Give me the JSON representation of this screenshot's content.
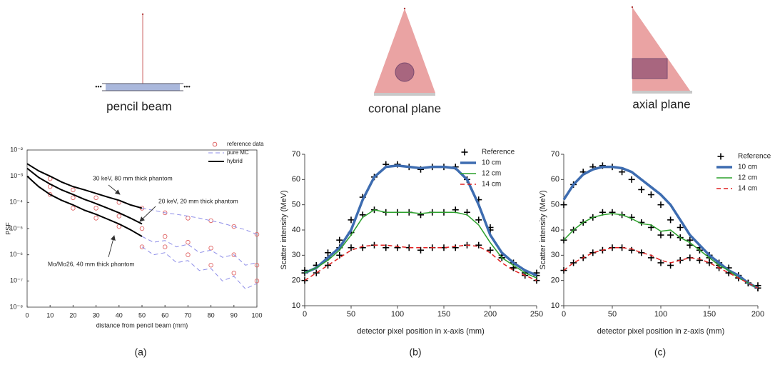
{
  "diagrams": [
    {
      "label": "pencil beam"
    },
    {
      "label": "coronal plane"
    },
    {
      "label": "axial plane"
    }
  ],
  "panel_labels": [
    "(a)",
    "(b)",
    "(c)"
  ],
  "chart_data": [
    {
      "type": "line",
      "ylabel": "PSF",
      "xlabel": "distance from pencil beam (mm)",
      "log_y": true,
      "box": true,
      "legend": "upper right",
      "xlim": [
        0,
        100
      ],
      "xticks": [
        0,
        10,
        20,
        30,
        40,
        50,
        60,
        70,
        80,
        90,
        100
      ],
      "ylim": [
        1e-08,
        0.01
      ],
      "yticks": [
        {
          "value": 1e-08,
          "label": "10⁻⁸"
        },
        {
          "value": 1e-07,
          "label": "10⁻⁷"
        },
        {
          "value": 1e-06,
          "label": "10⁻⁶"
        },
        {
          "value": 1e-05,
          "label": "10⁻⁵"
        },
        {
          "value": 0.0001,
          "label": "10⁻⁴"
        },
        {
          "value": 0.001,
          "label": "10⁻³"
        },
        {
          "value": 0.01,
          "label": "10⁻²"
        }
      ],
      "series": [
        {
          "name": "reference data",
          "type": "scatter",
          "marker": "circle",
          "color": "#e06666",
          "x": [
            10,
            20,
            30,
            40,
            50,
            60,
            70,
            80,
            90,
            100,
            10,
            20,
            30,
            40,
            50,
            60,
            70,
            80,
            90,
            100,
            10,
            20,
            30,
            40,
            50,
            60,
            70,
            80,
            90,
            100
          ],
          "values": [
            0.0008,
            0.0003,
            0.00015,
            0.0001,
            6e-05,
            4e-05,
            2.5e-05,
            2e-05,
            1.2e-05,
            6e-06,
            0.0004,
            0.00015,
            6e-05,
            3e-05,
            1e-05,
            5e-06,
            3e-06,
            1.8e-06,
            1e-06,
            4e-07,
            0.0002,
            6e-05,
            2.5e-05,
            1.2e-05,
            2e-06,
            2e-06,
            1e-06,
            4e-07,
            2e-07,
            1e-07
          ]
        },
        {
          "name": "pure MC",
          "color": "#8e8ee8",
          "dash": true,
          "linewidth": 1,
          "lines": [
            {
              "x": [
                50,
                55,
                60,
                65,
                70,
                75,
                80,
                85,
                90,
                95,
                100
              ],
              "values": [
                6e-05,
                5e-05,
                4e-05,
                3.5e-05,
                3e-05,
                2.5e-05,
                2e-05,
                1.6e-05,
                1.2e-05,
                9e-06,
                6e-06
              ]
            },
            {
              "x": [
                50,
                55,
                60,
                65,
                70,
                75,
                80,
                85,
                90,
                95,
                100
              ],
              "values": [
                5e-06,
                3e-06,
                3.5e-06,
                2e-06,
                2.5e-06,
                1.2e-06,
                1.5e-06,
                8e-07,
                1e-06,
                4e-07,
                5e-07
              ]
            },
            {
              "x": [
                50,
                55,
                60,
                65,
                70,
                75,
                80,
                85,
                90,
                95,
                100
              ],
              "values": [
                2e-06,
                1e-06,
                1.2e-06,
                5e-07,
                6e-07,
                2.5e-07,
                3e-07,
                1e-07,
                1.5e-07,
                5e-08,
                8e-08
              ]
            }
          ]
        },
        {
          "name": "hybrid",
          "color": "#000000",
          "linewidth": 2,
          "lines": [
            {
              "x": [
                0,
                5,
                10,
                15,
                20,
                25,
                30,
                35,
                40,
                45,
                50
              ],
              "values": [
                0.003,
                0.0016,
                0.001,
                0.0006,
                0.0004,
                0.0003,
                0.00022,
                0.00016,
                0.00012,
                8e-05,
                6e-05
              ]
            },
            {
              "x": [
                0,
                5,
                10,
                15,
                20,
                25,
                30,
                35,
                40,
                45,
                50
              ],
              "values": [
                0.002,
                0.0009,
                0.0005,
                0.0003,
                0.0002,
                0.00013,
                9e-05,
                6e-05,
                4e-05,
                2.5e-05,
                1.5e-05
              ]
            },
            {
              "x": [
                0,
                5,
                10,
                15,
                20,
                25,
                30,
                35,
                40,
                45,
                50
              ],
              "values": [
                0.001,
                0.0004,
                0.0002,
                0.00012,
                8e-05,
                5e-05,
                3.5e-05,
                2.3e-05,
                1.5e-05,
                9e-06,
                5e-06
              ]
            }
          ]
        }
      ],
      "annotations": [
        "30 keV, 80 mm thick phantom",
        "20 keV, 20 mm thick phantom",
        "Mo/Mo26, 40 mm thick phantom"
      ]
    },
    {
      "type": "line",
      "ylabel": "Scatter intensity (MeV)",
      "xlabel": "detector pixel position in x-axis (mm)",
      "legend": "upper right",
      "xlim": [
        0,
        250
      ],
      "xticks": [
        0,
        50,
        100,
        150,
        200,
        250
      ],
      "ylim": [
        10,
        70
      ],
      "yticks": [
        10,
        20,
        30,
        40,
        50,
        60,
        70
      ],
      "x": [
        0,
        12.5,
        25,
        37.5,
        50,
        62.5,
        75,
        87.5,
        100,
        112.5,
        125,
        137.5,
        150,
        162.5,
        175,
        187.5,
        200,
        212.5,
        225,
        237.5,
        250
      ],
      "series": [
        {
          "name": "Reference",
          "type": "scatter",
          "marker": "plus",
          "color": "#000000",
          "values": [
            [
              24,
              26,
              31,
              36,
              44,
              53,
              61,
              66,
              66,
              65,
              64,
              65,
              65,
              65,
              60,
              52,
              41,
              29,
              27,
              23,
              23
            ],
            [
              23,
              26,
              29,
              33,
              39,
              46,
              48,
              47,
              47,
              47,
              46,
              47,
              47,
              48,
              47,
              44,
              40,
              30,
              25,
              23,
              22
            ],
            [
              20,
              23,
              26,
              30,
              33,
              33,
              34,
              33,
              33,
              33,
              32,
              33,
              33,
              33,
              34,
              34,
              32,
              29,
              25,
              22,
              20
            ]
          ]
        },
        {
          "name": "10 cm",
          "color": "#3d6cb0",
          "linewidth": 3.5,
          "values": [
            23,
            25,
            29,
            33,
            40,
            52,
            61,
            65,
            65.5,
            65,
            64.5,
            65,
            65,
            64.5,
            60,
            50,
            38,
            31,
            27,
            24,
            22
          ]
        },
        {
          "name": "12 cm",
          "color": "#2ca02c",
          "linewidth": 1.5,
          "values": [
            23,
            25,
            28,
            32,
            38,
            45,
            48,
            47,
            47,
            47,
            46.5,
            47,
            47,
            47,
            46,
            42,
            35,
            29,
            26,
            23,
            21
          ]
        },
        {
          "name": "14 cm",
          "color": "#e02020",
          "linewidth": 1.5,
          "dash": true,
          "values": [
            20,
            23,
            26,
            29,
            32,
            33.5,
            34,
            34,
            33.5,
            33,
            33,
            33,
            33,
            33.5,
            34,
            33.5,
            31,
            27,
            24,
            22,
            20
          ]
        }
      ]
    },
    {
      "type": "line",
      "ylabel": "Scatter intensity (MeV)",
      "xlabel": "detector pixel position in z-axis (mm)",
      "legend": "upper right",
      "xlim": [
        0,
        200
      ],
      "xticks": [
        0,
        50,
        100,
        150,
        200
      ],
      "ylim": [
        10,
        70
      ],
      "yticks": [
        10,
        20,
        30,
        40,
        50,
        60,
        70
      ],
      "x": [
        0,
        10,
        20,
        30,
        40,
        50,
        60,
        70,
        80,
        90,
        100,
        110,
        120,
        130,
        140,
        150,
        160,
        170,
        180,
        190,
        200
      ],
      "series": [
        {
          "name": "Reference",
          "type": "scatter",
          "marker": "plus",
          "color": "#000000",
          "values": [
            [
              50,
              58,
              63,
              65,
              65.5,
              65,
              63,
              60,
              56,
              54,
              50,
              44,
              41,
              36,
              33,
              30,
              27,
              25,
              22,
              19,
              17
            ],
            [
              36,
              40,
              43,
              45,
              47,
              47,
              46,
              45,
              43,
              41,
              38,
              38,
              37,
              34,
              32,
              29,
              26,
              23,
              21,
              19,
              17
            ],
            [
              24,
              27,
              29,
              31,
              32,
              33,
              33,
              32,
              31,
              29,
              27,
              26,
              28,
              29,
              28,
              27,
              25,
              23,
              21,
              19,
              18
            ]
          ]
        },
        {
          "name": "10 cm",
          "color": "#3d6cb0",
          "linewidth": 3.5,
          "values": [
            52,
            58,
            62,
            64,
            65,
            65,
            64.5,
            63,
            60,
            57,
            54,
            50,
            44,
            38,
            34,
            30,
            27,
            24,
            22,
            19,
            17
          ]
        },
        {
          "name": "12 cm",
          "color": "#2ca02c",
          "linewidth": 1.5,
          "values": [
            36,
            40,
            43,
            45,
            46,
            46.5,
            46,
            44.5,
            42.5,
            42,
            39.5,
            40,
            37,
            35,
            32,
            29,
            26,
            24,
            21,
            19,
            17
          ]
        },
        {
          "name": "14 cm",
          "color": "#e02020",
          "linewidth": 1.5,
          "dash": true,
          "values": [
            24,
            27,
            29,
            31,
            32,
            33,
            33,
            32.5,
            31,
            30,
            28,
            27,
            28,
            29,
            28.5,
            27,
            25,
            23,
            21,
            19,
            17
          ]
        }
      ]
    }
  ]
}
